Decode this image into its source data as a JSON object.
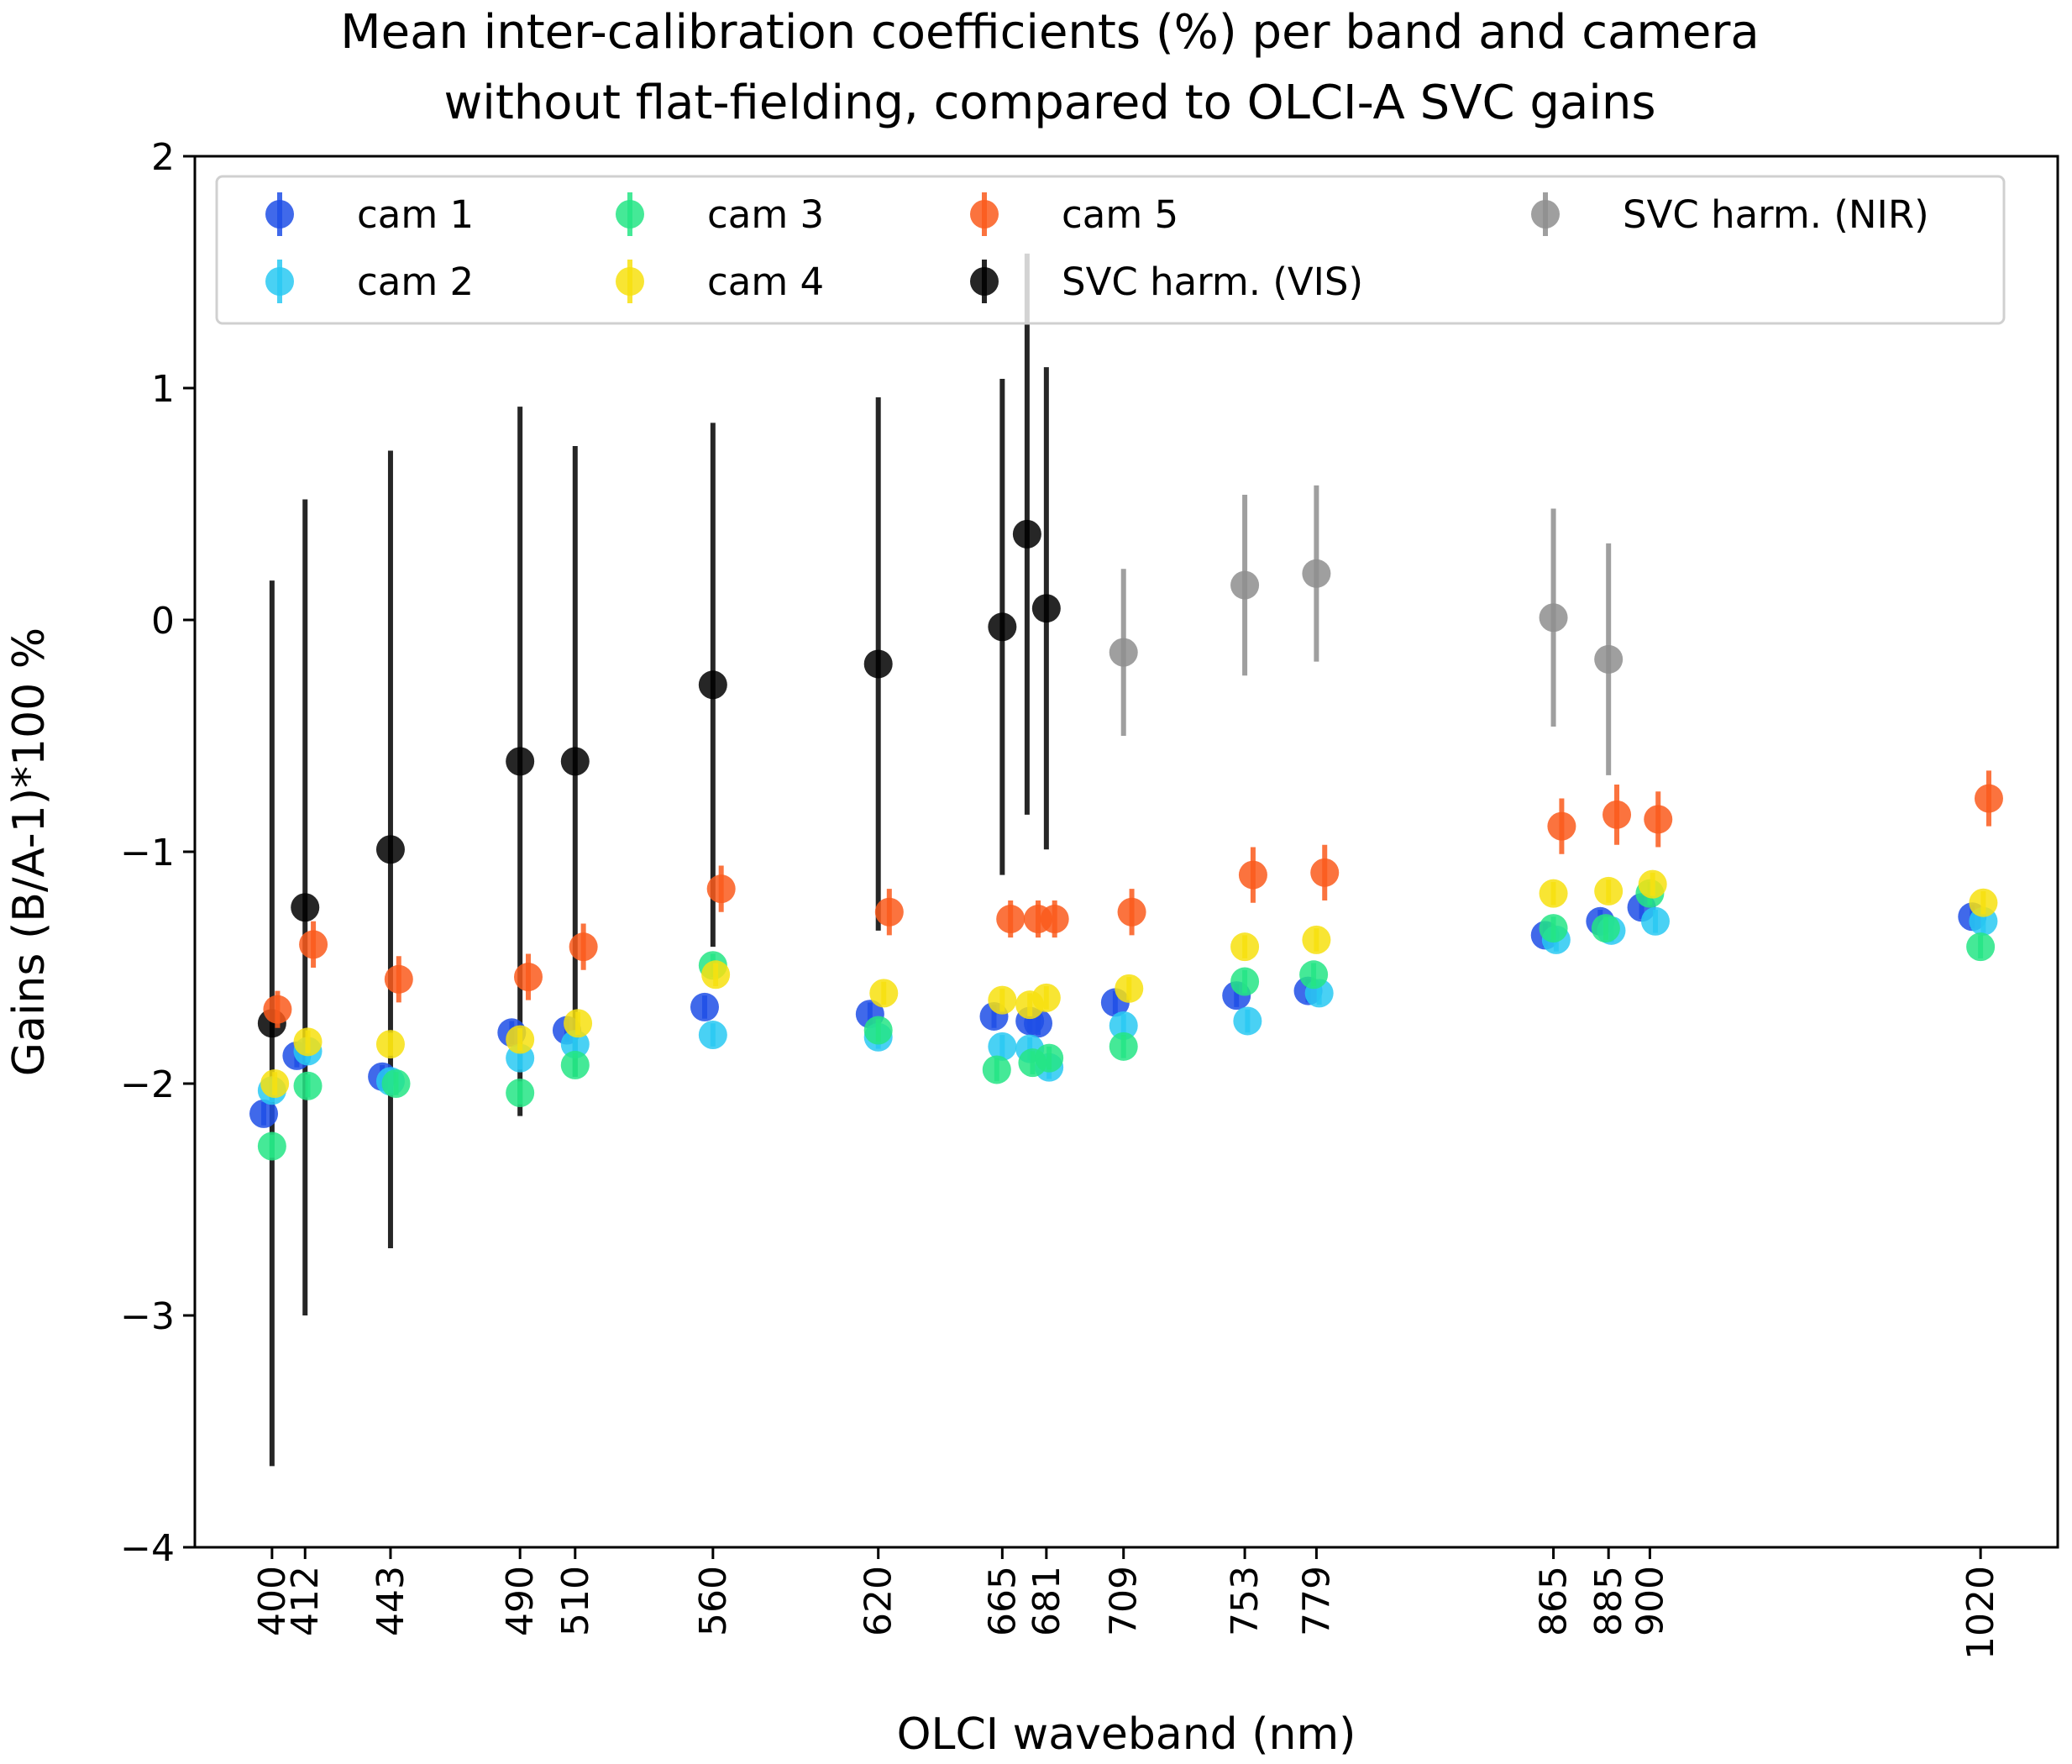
{
  "chart_data": {
    "type": "scatter",
    "title_lines": [
      "Mean inter-calibration coefficients (%) per band and camera",
      "without flat-fielding, compared to OLCI-A SVC gains"
    ],
    "xlabel": "OLCI waveband (nm)",
    "ylabel": "Gains (B/A-1)*100 %",
    "ylim": [
      -4,
      2
    ],
    "yticks": [
      2,
      1,
      0,
      -1,
      -2,
      -3,
      -4
    ],
    "ytick_labels": [
      "2",
      "1",
      "0",
      "−1",
      "−2",
      "−3",
      "−4"
    ],
    "xlim": [
      372,
      1048
    ],
    "xticks": [
      400,
      412,
      443,
      490,
      510,
      560,
      620,
      665,
      681,
      709,
      753,
      779,
      865,
      885,
      900,
      1020
    ],
    "xtick_labels": [
      "400",
      "412",
      "443",
      "490",
      "510",
      "560",
      "620",
      "665",
      "681",
      "709",
      "753",
      "779",
      "865",
      "885",
      "900",
      "1020"
    ],
    "legend_position": "top",
    "series": [
      {
        "name": "cam 1",
        "color": "#1f4fe6",
        "points": [
          {
            "x": 397,
            "y": -2.13
          },
          {
            "x": 409,
            "y": -1.88
          },
          {
            "x": 440,
            "y": -1.97
          },
          {
            "x": 487,
            "y": -1.78
          },
          {
            "x": 507,
            "y": -1.77
          },
          {
            "x": 557,
            "y": -1.67
          },
          {
            "x": 617,
            "y": -1.7
          },
          {
            "x": 662,
            "y": -1.71
          },
          {
            "x": 675,
            "y": -1.73
          },
          {
            "x": 678,
            "y": -1.74
          },
          {
            "x": 706,
            "y": -1.65
          },
          {
            "x": 750,
            "y": -1.62
          },
          {
            "x": 776,
            "y": -1.6
          },
          {
            "x": 862,
            "y": -1.36
          },
          {
            "x": 882,
            "y": -1.3
          },
          {
            "x": 897,
            "y": -1.24
          },
          {
            "x": 1017,
            "y": -1.28
          }
        ]
      },
      {
        "name": "cam 2",
        "color": "#29c9f2",
        "points": [
          {
            "x": 400,
            "y": -2.03
          },
          {
            "x": 413,
            "y": -1.86
          },
          {
            "x": 443,
            "y": -1.99
          },
          {
            "x": 490,
            "y": -1.89
          },
          {
            "x": 510,
            "y": -1.83
          },
          {
            "x": 560,
            "y": -1.79
          },
          {
            "x": 620,
            "y": -1.8
          },
          {
            "x": 665,
            "y": -1.84
          },
          {
            "x": 675,
            "y": -1.85
          },
          {
            "x": 682,
            "y": -1.93
          },
          {
            "x": 709,
            "y": -1.75
          },
          {
            "x": 754,
            "y": -1.73
          },
          {
            "x": 780,
            "y": -1.61
          },
          {
            "x": 866,
            "y": -1.38
          },
          {
            "x": 886,
            "y": -1.34
          },
          {
            "x": 902,
            "y": -1.3
          },
          {
            "x": 1021,
            "y": -1.3
          }
        ]
      },
      {
        "name": "cam 3",
        "color": "#24e585",
        "points": [
          {
            "x": 400,
            "y": -2.27
          },
          {
            "x": 413,
            "y": -2.01
          },
          {
            "x": 445,
            "y": -2.0
          },
          {
            "x": 490,
            "y": -2.04
          },
          {
            "x": 510,
            "y": -1.92
          },
          {
            "x": 560,
            "y": -1.49
          },
          {
            "x": 620,
            "y": -1.77
          },
          {
            "x": 663,
            "y": -1.94
          },
          {
            "x": 676,
            "y": -1.91
          },
          {
            "x": 682,
            "y": -1.89
          },
          {
            "x": 709,
            "y": -1.84
          },
          {
            "x": 753,
            "y": -1.56
          },
          {
            "x": 778,
            "y": -1.53
          },
          {
            "x": 865,
            "y": -1.33
          },
          {
            "x": 884,
            "y": -1.33
          },
          {
            "x": 900,
            "y": -1.18
          },
          {
            "x": 1020,
            "y": -1.41
          }
        ]
      },
      {
        "name": "cam 4",
        "color": "#f7e10f",
        "points": [
          {
            "x": 401,
            "y": -2.0
          },
          {
            "x": 413,
            "y": -1.82
          },
          {
            "x": 443,
            "y": -1.83
          },
          {
            "x": 490,
            "y": -1.81
          },
          {
            "x": 511,
            "y": -1.74
          },
          {
            "x": 561,
            "y": -1.53
          },
          {
            "x": 622,
            "y": -1.61
          },
          {
            "x": 665,
            "y": -1.64
          },
          {
            "x": 675,
            "y": -1.66
          },
          {
            "x": 681,
            "y": -1.63
          },
          {
            "x": 711,
            "y": -1.59
          },
          {
            "x": 753,
            "y": -1.41
          },
          {
            "x": 779,
            "y": -1.38
          },
          {
            "x": 865,
            "y": -1.18
          },
          {
            "x": 885,
            "y": -1.17
          },
          {
            "x": 901,
            "y": -1.14
          },
          {
            "x": 1021,
            "y": -1.22
          }
        ]
      },
      {
        "name": "cam 5",
        "color": "#fa5a1c",
        "points": [
          {
            "x": 402,
            "y": -1.68,
            "err": 0.08
          },
          {
            "x": 415,
            "y": -1.4,
            "err": 0.1
          },
          {
            "x": 446,
            "y": -1.55,
            "err": 0.1
          },
          {
            "x": 493,
            "y": -1.54,
            "err": 0.1
          },
          {
            "x": 513,
            "y": -1.41,
            "err": 0.1
          },
          {
            "x": 563,
            "y": -1.16,
            "err": 0.1
          },
          {
            "x": 624,
            "y": -1.26,
            "err": 0.1
          },
          {
            "x": 668,
            "y": -1.29,
            "err": 0.08
          },
          {
            "x": 678,
            "y": -1.29,
            "err": 0.08
          },
          {
            "x": 684,
            "y": -1.29,
            "err": 0.08
          },
          {
            "x": 712,
            "y": -1.26,
            "err": 0.1
          },
          {
            "x": 756,
            "y": -1.1,
            "err": 0.12
          },
          {
            "x": 782,
            "y": -1.09,
            "err": 0.12
          },
          {
            "x": 868,
            "y": -0.89,
            "err": 0.12
          },
          {
            "x": 888,
            "y": -0.84,
            "err": 0.13
          },
          {
            "x": 903,
            "y": -0.86,
            "err": 0.12
          },
          {
            "x": 1023,
            "y": -0.77,
            "err": 0.12
          }
        ]
      },
      {
        "name": "SVC harm. (VIS)",
        "color": "#000000",
        "points": [
          {
            "x": 400,
            "y": -1.74,
            "err": 1.91
          },
          {
            "x": 412,
            "y": -1.24,
            "err": 1.76
          },
          {
            "x": 443,
            "y": -0.99,
            "err": 1.72
          },
          {
            "x": 490,
            "y": -0.61,
            "err": 1.53
          },
          {
            "x": 510,
            "y": -0.61,
            "err": 1.36
          },
          {
            "x": 560,
            "y": -0.28,
            "err": 1.13
          },
          {
            "x": 620,
            "y": -0.19,
            "err": 1.15
          },
          {
            "x": 665,
            "y": -0.03,
            "err": 1.07
          },
          {
            "x": 674,
            "y": 0.37,
            "err": 1.21
          },
          {
            "x": 681,
            "y": 0.05,
            "err": 1.04
          }
        ]
      },
      {
        "name": "SVC harm. (NIR)",
        "color": "#8e8e8e",
        "points": [
          {
            "x": 709,
            "y": -0.14,
            "err": 0.36
          },
          {
            "x": 753,
            "y": 0.15,
            "err": 0.39
          },
          {
            "x": 779,
            "y": 0.2,
            "err": 0.38
          },
          {
            "x": 865,
            "y": 0.01,
            "err": 0.47
          },
          {
            "x": 885,
            "y": -0.17,
            "err": 0.5
          }
        ]
      }
    ]
  }
}
